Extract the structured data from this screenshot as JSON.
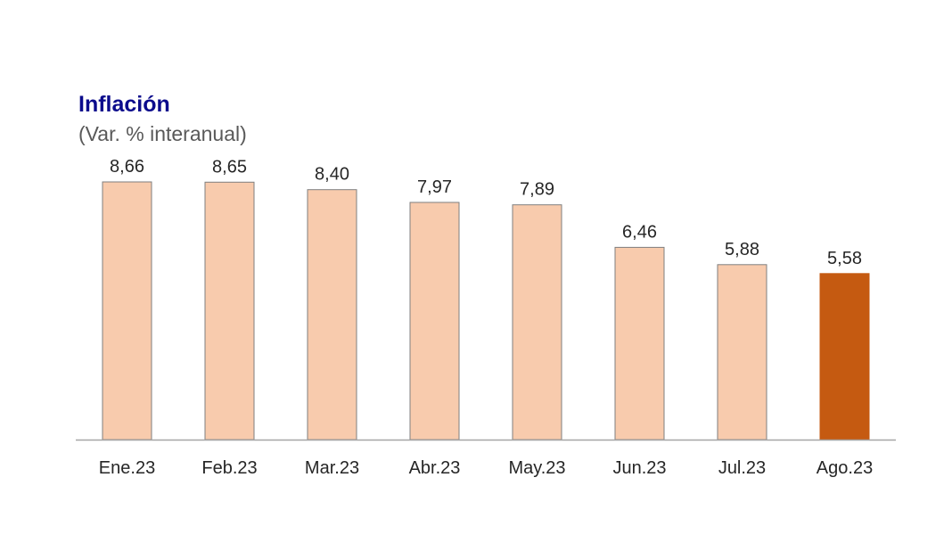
{
  "chart_data": {
    "type": "bar",
    "title": "Inflación",
    "subtitle": "(Var. % interanual)",
    "categories": [
      "Ene.23",
      "Feb.23",
      "Mar.23",
      "Abr.23",
      "May.23",
      "Jun.23",
      "Jul.23",
      "Ago.23"
    ],
    "values": [
      8.66,
      8.65,
      8.4,
      7.97,
      7.89,
      6.46,
      5.88,
      5.58
    ],
    "value_labels": [
      "8,66",
      "8,65",
      "8,40",
      "7,97",
      "7,89",
      "6,46",
      "5,88",
      "5,58"
    ],
    "ylim": [
      0,
      8.66
    ],
    "grid": false,
    "colors": {
      "default_bar": "#f8cbad",
      "default_bar_border": "#7f7f7f",
      "highlight_bar": "#c55a11",
      "highlight_index": 7,
      "axis": "#a6a6a6"
    }
  }
}
